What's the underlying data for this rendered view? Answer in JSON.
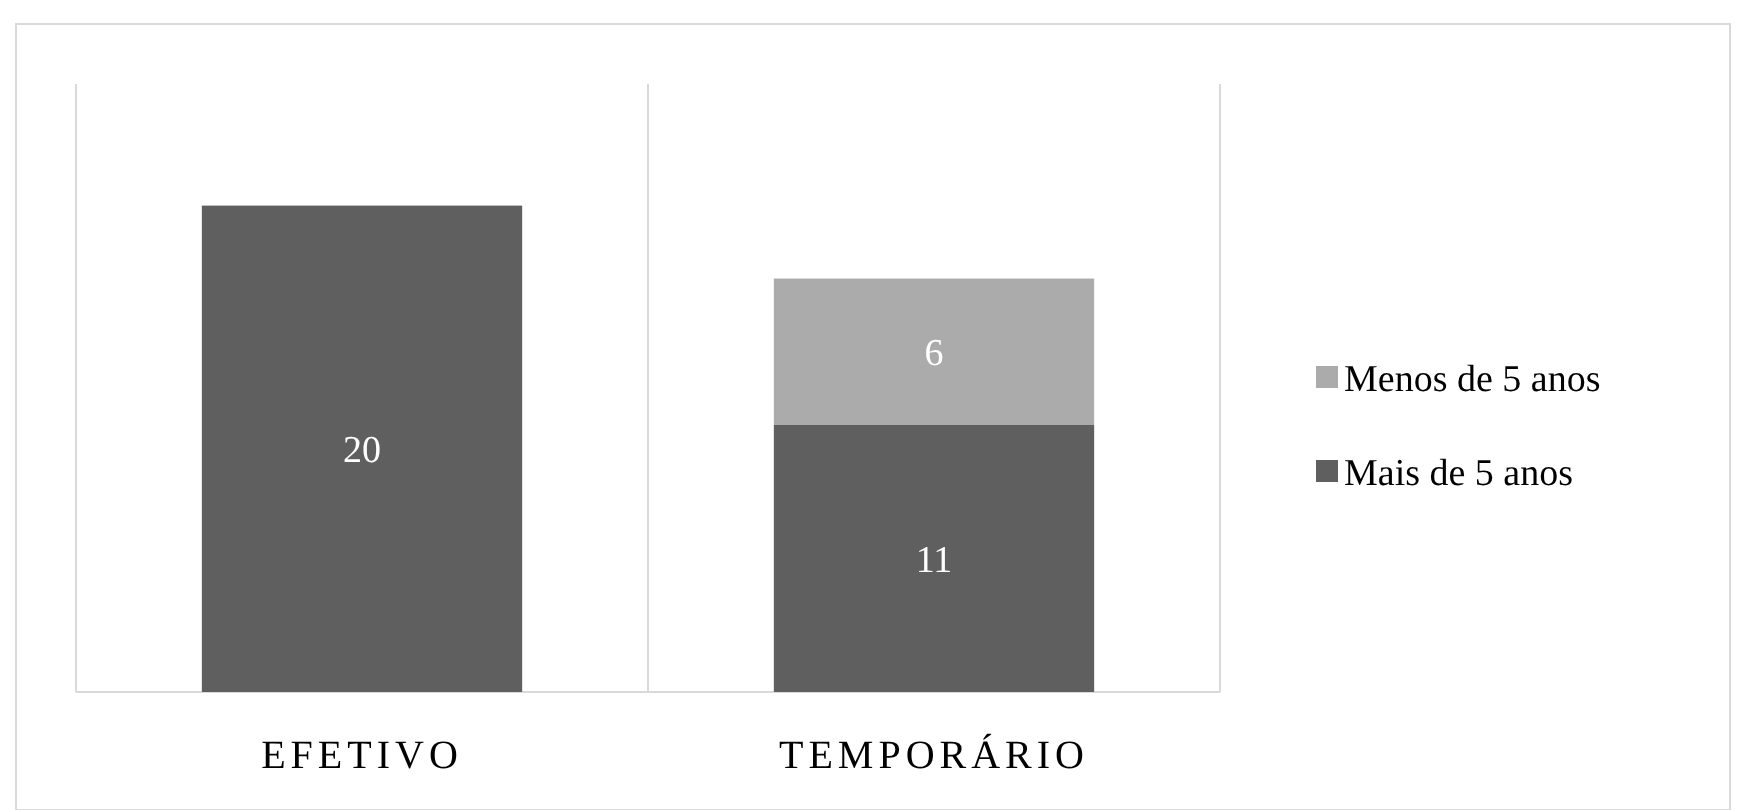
{
  "chart_data": {
    "type": "bar",
    "stacked": true,
    "categories": [
      "EFETIVO",
      "TEMPORÁRIO"
    ],
    "series": [
      {
        "name": "Mais de 5 anos",
        "color": "#5f5f5f",
        "values": [
          20,
          11
        ]
      },
      {
        "name": "Menos de 5 anos",
        "color": "#ababab",
        "values": [
          null,
          6
        ]
      }
    ],
    "data_labels": true,
    "grid": "x",
    "legend": "right"
  }
}
